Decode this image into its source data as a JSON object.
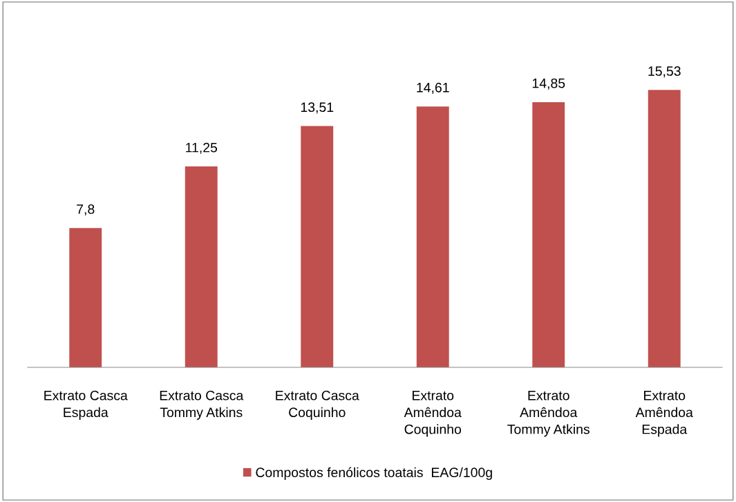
{
  "chart_data": {
    "type": "bar",
    "categories": [
      "Extrato Casca\nEspada",
      "Extrato Casca\nTommy Atkins",
      "Extrato Casca\nCoquinho",
      "Extrato\nAmêndoa\nCoquinho",
      "Extrato\nAmêndoa\nTommy Atkins",
      "Extrato\nAmêndoa\nEspada"
    ],
    "series": [
      {
        "name": "Compostos fenólicos toatais  EAG/100g",
        "color": "#c0504d",
        "values": [
          7.8,
          11.25,
          13.51,
          14.61,
          14.85,
          15.53
        ],
        "value_labels": [
          "7,8",
          "11,25",
          "13,51",
          "14,61",
          "14,85",
          "15,53"
        ]
      }
    ],
    "legend": "bottom"
  }
}
